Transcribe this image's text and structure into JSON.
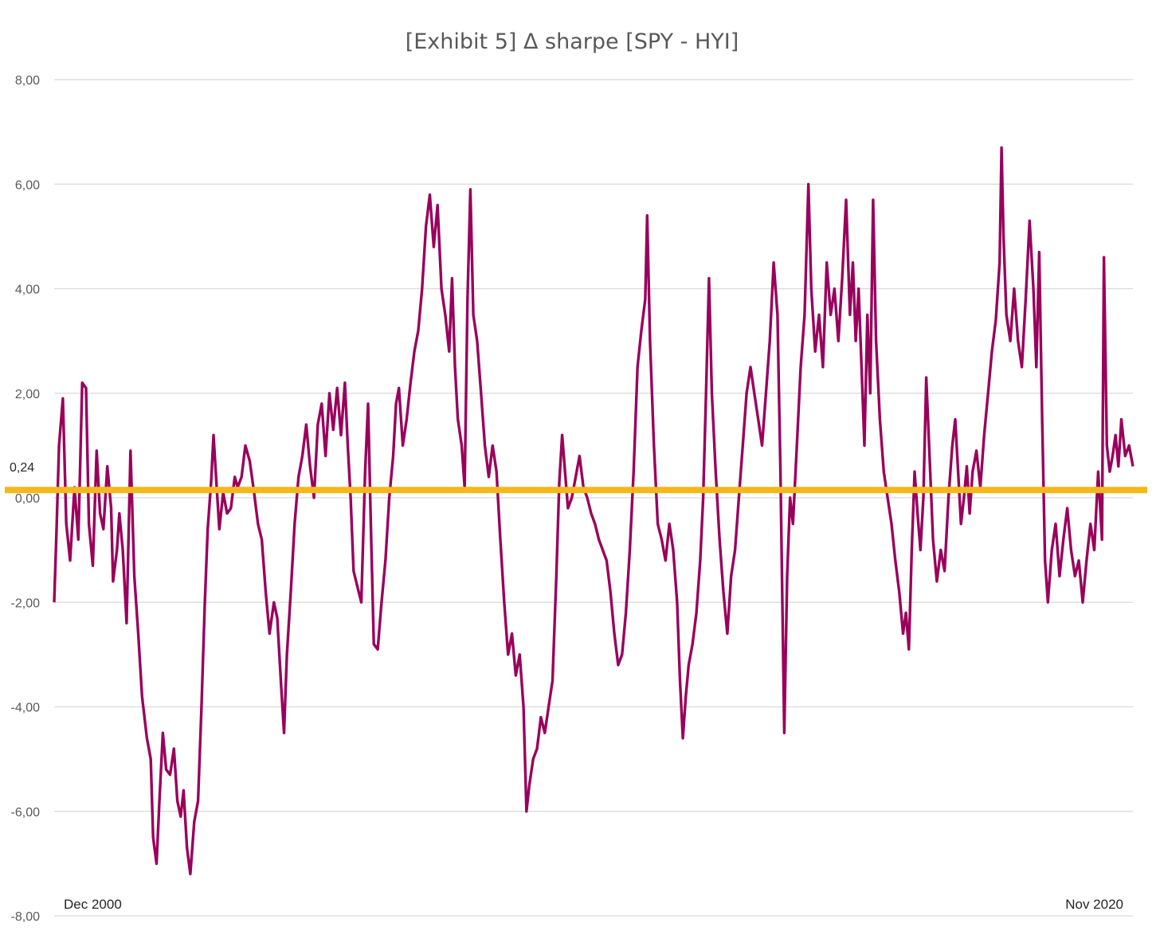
{
  "chart_data": {
    "type": "line",
    "title": "[Exhibit 5] Δ sharpe [SPY - HYI]",
    "xlabel": "",
    "ylabel": "",
    "x_start_label": "Dec 2000",
    "x_end_label": "Nov 2020",
    "ylim": [
      -8,
      8
    ],
    "yticks": [
      8,
      6,
      4,
      2,
      0,
      -2,
      -4,
      -6,
      -8
    ],
    "ytick_labels": [
      "8,00",
      "6,00",
      "4,00",
      "2,00",
      "0,00",
      "-2,00",
      "-4,00",
      "-6,00",
      "-8,00"
    ],
    "grid": true,
    "reference_line": {
      "value": 0.24,
      "label": "0,24",
      "color": "#f4b81c"
    },
    "series": [
      {
        "name": "Δ sharpe [SPY - HYI]",
        "color": "#99005c",
        "keypoints": [
          [
            0.0,
            -2.0
          ],
          [
            0.05,
            -0.6
          ],
          [
            0.1,
            1.0
          ],
          [
            0.18,
            1.9
          ],
          [
            0.25,
            -0.5
          ],
          [
            0.33,
            -1.2
          ],
          [
            0.42,
            0.2
          ],
          [
            0.5,
            -0.8
          ],
          [
            0.58,
            2.2
          ],
          [
            0.66,
            2.1
          ],
          [
            0.72,
            -0.5
          ],
          [
            0.8,
            -1.3
          ],
          [
            0.88,
            0.9
          ],
          [
            0.95,
            -0.3
          ],
          [
            1.02,
            -0.6
          ],
          [
            1.1,
            0.6
          ],
          [
            1.18,
            -0.2
          ],
          [
            1.22,
            -1.6
          ],
          [
            1.3,
            -1.0
          ],
          [
            1.35,
            -0.3
          ],
          [
            1.42,
            -1.0
          ],
          [
            1.5,
            -2.4
          ],
          [
            1.58,
            0.9
          ],
          [
            1.66,
            -1.5
          ],
          [
            1.74,
            -2.6
          ],
          [
            1.82,
            -3.8
          ],
          [
            1.92,
            -4.6
          ],
          [
            2.0,
            -5.0
          ],
          [
            2.05,
            -6.5
          ],
          [
            2.12,
            -7.0
          ],
          [
            2.18,
            -5.8
          ],
          [
            2.25,
            -4.5
          ],
          [
            2.32,
            -5.2
          ],
          [
            2.4,
            -5.3
          ],
          [
            2.48,
            -4.8
          ],
          [
            2.55,
            -5.8
          ],
          [
            2.62,
            -6.1
          ],
          [
            2.68,
            -5.6
          ],
          [
            2.75,
            -6.7
          ],
          [
            2.82,
            -7.2
          ],
          [
            2.9,
            -6.2
          ],
          [
            2.98,
            -5.8
          ],
          [
            3.05,
            -4.0
          ],
          [
            3.12,
            -2.0
          ],
          [
            3.18,
            -0.6
          ],
          [
            3.25,
            0.3
          ],
          [
            3.3,
            1.2
          ],
          [
            3.36,
            0.3
          ],
          [
            3.42,
            -0.6
          ],
          [
            3.5,
            0.1
          ],
          [
            3.58,
            -0.3
          ],
          [
            3.66,
            -0.2
          ],
          [
            3.74,
            0.4
          ],
          [
            3.8,
            0.2
          ],
          [
            3.88,
            0.4
          ],
          [
            3.96,
            1.0
          ],
          [
            4.05,
            0.7
          ],
          [
            4.14,
            0.1
          ],
          [
            4.22,
            -0.5
          ],
          [
            4.3,
            -0.8
          ],
          [
            4.38,
            -1.8
          ],
          [
            4.46,
            -2.6
          ],
          [
            4.55,
            -2.0
          ],
          [
            4.62,
            -2.3
          ],
          [
            4.7,
            -3.6
          ],
          [
            4.76,
            -4.5
          ],
          [
            4.82,
            -3.0
          ],
          [
            4.9,
            -1.8
          ],
          [
            4.98,
            -0.5
          ],
          [
            5.06,
            0.4
          ],
          [
            5.14,
            0.8
          ],
          [
            5.22,
            1.4
          ],
          [
            5.3,
            0.6
          ],
          [
            5.38,
            0.0
          ],
          [
            5.46,
            1.4
          ],
          [
            5.54,
            1.8
          ],
          [
            5.62,
            0.8
          ],
          [
            5.7,
            2.0
          ],
          [
            5.78,
            1.3
          ],
          [
            5.86,
            2.1
          ],
          [
            5.94,
            1.2
          ],
          [
            6.02,
            2.2
          ],
          [
            6.08,
            1.0
          ],
          [
            6.14,
            0.0
          ],
          [
            6.2,
            -1.4
          ],
          [
            6.28,
            -1.7
          ],
          [
            6.36,
            -2.0
          ],
          [
            6.44,
            0.5
          ],
          [
            6.5,
            1.8
          ],
          [
            6.56,
            -0.6
          ],
          [
            6.62,
            -2.8
          ],
          [
            6.7,
            -2.9
          ],
          [
            6.78,
            -2.0
          ],
          [
            6.86,
            -1.2
          ],
          [
            6.94,
            0.0
          ],
          [
            7.02,
            0.8
          ],
          [
            7.08,
            1.8
          ],
          [
            7.14,
            2.1
          ],
          [
            7.22,
            1.0
          ],
          [
            7.3,
            1.5
          ],
          [
            7.38,
            2.2
          ],
          [
            7.46,
            2.8
          ],
          [
            7.54,
            3.2
          ],
          [
            7.62,
            4.0
          ],
          [
            7.7,
            5.2
          ],
          [
            7.78,
            5.8
          ],
          [
            7.86,
            4.8
          ],
          [
            7.94,
            5.6
          ],
          [
            8.02,
            4.0
          ],
          [
            8.1,
            3.5
          ],
          [
            8.18,
            2.8
          ],
          [
            8.24,
            4.2
          ],
          [
            8.3,
            2.5
          ],
          [
            8.36,
            1.5
          ],
          [
            8.44,
            1.0
          ],
          [
            8.5,
            0.2
          ],
          [
            8.56,
            3.8
          ],
          [
            8.62,
            5.9
          ],
          [
            8.68,
            3.5
          ],
          [
            8.76,
            3.0
          ],
          [
            8.84,
            2.0
          ],
          [
            8.92,
            1.0
          ],
          [
            9.0,
            0.4
          ],
          [
            9.08,
            1.0
          ],
          [
            9.16,
            0.5
          ],
          [
            9.24,
            -0.8
          ],
          [
            9.32,
            -2.0
          ],
          [
            9.4,
            -3.0
          ],
          [
            9.48,
            -2.6
          ],
          [
            9.56,
            -3.4
          ],
          [
            9.64,
            -3.0
          ],
          [
            9.72,
            -4.0
          ],
          [
            9.78,
            -6.0
          ],
          [
            9.84,
            -5.5
          ],
          [
            9.92,
            -5.0
          ],
          [
            10.0,
            -4.8
          ],
          [
            10.08,
            -4.2
          ],
          [
            10.16,
            -4.5
          ],
          [
            10.24,
            -4.0
          ],
          [
            10.32,
            -3.5
          ],
          [
            10.4,
            -1.5
          ],
          [
            10.46,
            0.3
          ],
          [
            10.52,
            1.2
          ],
          [
            10.58,
            0.5
          ],
          [
            10.64,
            -0.2
          ],
          [
            10.72,
            0.0
          ],
          [
            10.8,
            0.4
          ],
          [
            10.88,
            0.8
          ],
          [
            10.96,
            0.2
          ],
          [
            11.04,
            0.0
          ],
          [
            11.12,
            -0.3
          ],
          [
            11.2,
            -0.5
          ],
          [
            11.28,
            -0.8
          ],
          [
            11.36,
            -1.0
          ],
          [
            11.44,
            -1.2
          ],
          [
            11.52,
            -1.8
          ],
          [
            11.6,
            -2.6
          ],
          [
            11.68,
            -3.2
          ],
          [
            11.76,
            -3.0
          ],
          [
            11.84,
            -2.2
          ],
          [
            11.92,
            -1.0
          ],
          [
            12.0,
            0.5
          ],
          [
            12.08,
            2.5
          ],
          [
            12.16,
            3.2
          ],
          [
            12.24,
            3.8
          ],
          [
            12.28,
            5.4
          ],
          [
            12.34,
            3.0
          ],
          [
            12.42,
            1.0
          ],
          [
            12.5,
            -0.5
          ],
          [
            12.58,
            -0.8
          ],
          [
            12.66,
            -1.2
          ],
          [
            12.74,
            -0.5
          ],
          [
            12.82,
            -1.0
          ],
          [
            12.9,
            -2.0
          ],
          [
            12.96,
            -3.5
          ],
          [
            13.02,
            -4.6
          ],
          [
            13.08,
            -3.8
          ],
          [
            13.14,
            -3.2
          ],
          [
            13.22,
            -2.8
          ],
          [
            13.3,
            -2.2
          ],
          [
            13.38,
            -1.2
          ],
          [
            13.44,
            0.0
          ],
          [
            13.5,
            2.0
          ],
          [
            13.56,
            4.2
          ],
          [
            13.62,
            2.0
          ],
          [
            13.7,
            0.5
          ],
          [
            13.78,
            -0.8
          ],
          [
            13.86,
            -1.8
          ],
          [
            13.94,
            -2.6
          ],
          [
            14.02,
            -1.5
          ],
          [
            14.1,
            -1.0
          ],
          [
            14.18,
            0.0
          ],
          [
            14.26,
            1.0
          ],
          [
            14.34,
            2.0
          ],
          [
            14.42,
            2.5
          ],
          [
            14.5,
            2.0
          ],
          [
            14.58,
            1.5
          ],
          [
            14.66,
            1.0
          ],
          [
            14.74,
            2.0
          ],
          [
            14.82,
            3.0
          ],
          [
            14.9,
            4.5
          ],
          [
            14.98,
            3.5
          ],
          [
            15.04,
            0.5
          ],
          [
            15.08,
            -2.0
          ],
          [
            15.12,
            -4.5
          ],
          [
            15.18,
            -1.5
          ],
          [
            15.24,
            0.0
          ],
          [
            15.3,
            -0.5
          ],
          [
            15.38,
            1.0
          ],
          [
            15.46,
            2.5
          ],
          [
            15.54,
            3.5
          ],
          [
            15.62,
            6.0
          ],
          [
            15.68,
            4.0
          ],
          [
            15.76,
            2.8
          ],
          [
            15.84,
            3.5
          ],
          [
            15.92,
            2.5
          ],
          [
            16.0,
            4.5
          ],
          [
            16.08,
            3.5
          ],
          [
            16.16,
            4.0
          ],
          [
            16.24,
            3.0
          ],
          [
            16.32,
            4.2
          ],
          [
            16.4,
            5.7
          ],
          [
            16.48,
            3.5
          ],
          [
            16.54,
            4.5
          ],
          [
            16.6,
            3.0
          ],
          [
            16.66,
            4.0
          ],
          [
            16.72,
            2.5
          ],
          [
            16.78,
            1.0
          ],
          [
            16.84,
            3.5
          ],
          [
            16.9,
            2.0
          ],
          [
            16.96,
            5.7
          ],
          [
            17.02,
            3.0
          ],
          [
            17.1,
            1.5
          ],
          [
            17.18,
            0.5
          ],
          [
            17.26,
            0.0
          ],
          [
            17.34,
            -0.5
          ],
          [
            17.42,
            -1.2
          ],
          [
            17.5,
            -1.8
          ],
          [
            17.58,
            -2.6
          ],
          [
            17.64,
            -2.2
          ],
          [
            17.7,
            -2.9
          ],
          [
            17.76,
            -1.0
          ],
          [
            17.82,
            0.5
          ],
          [
            17.88,
            -0.3
          ],
          [
            17.94,
            -1.0
          ],
          [
            18.0,
            0.0
          ],
          [
            18.06,
            2.3
          ],
          [
            18.12,
            1.0
          ],
          [
            18.2,
            -0.8
          ],
          [
            18.28,
            -1.6
          ],
          [
            18.36,
            -1.0
          ],
          [
            18.44,
            -1.4
          ],
          [
            18.52,
            0.0
          ],
          [
            18.6,
            1.0
          ],
          [
            18.66,
            1.5
          ],
          [
            18.72,
            0.5
          ],
          [
            18.78,
            -0.5
          ],
          [
            18.84,
            0.0
          ],
          [
            18.9,
            0.6
          ],
          [
            18.96,
            -0.3
          ],
          [
            19.02,
            0.5
          ],
          [
            19.1,
            0.9
          ],
          [
            19.18,
            0.2
          ],
          [
            19.26,
            1.2
          ],
          [
            19.34,
            2.0
          ],
          [
            19.42,
            2.8
          ],
          [
            19.5,
            3.4
          ],
          [
            19.58,
            4.5
          ],
          [
            19.62,
            6.7
          ],
          [
            19.66,
            5.0
          ],
          [
            19.72,
            3.5
          ],
          [
            19.8,
            3.0
          ],
          [
            19.88,
            4.0
          ],
          [
            19.96,
            3.0
          ],
          [
            20.04,
            2.5
          ],
          [
            20.12,
            3.8
          ],
          [
            20.2,
            5.3
          ],
          [
            20.28,
            4.0
          ],
          [
            20.34,
            2.5
          ],
          [
            20.4,
            4.7
          ],
          [
            20.46,
            1.5
          ],
          [
            20.52,
            -1.2
          ],
          [
            20.58,
            -2.0
          ],
          [
            20.66,
            -1.0
          ],
          [
            20.74,
            -0.5
          ],
          [
            20.82,
            -1.5
          ],
          [
            20.9,
            -0.8
          ],
          [
            20.98,
            -0.2
          ],
          [
            21.06,
            -1.0
          ],
          [
            21.14,
            -1.5
          ],
          [
            21.22,
            -1.2
          ],
          [
            21.3,
            -2.0
          ],
          [
            21.38,
            -1.2
          ],
          [
            21.46,
            -0.5
          ],
          [
            21.54,
            -1.0
          ],
          [
            21.62,
            0.5
          ],
          [
            21.7,
            -0.8
          ],
          [
            21.74,
            4.6
          ],
          [
            21.8,
            1.0
          ],
          [
            21.86,
            0.5
          ],
          [
            21.92,
            0.8
          ],
          [
            21.98,
            1.2
          ],
          [
            22.04,
            0.6
          ],
          [
            22.1,
            1.5
          ],
          [
            22.18,
            0.8
          ],
          [
            22.26,
            1.0
          ],
          [
            22.34,
            0.6
          ]
        ]
      }
    ]
  }
}
